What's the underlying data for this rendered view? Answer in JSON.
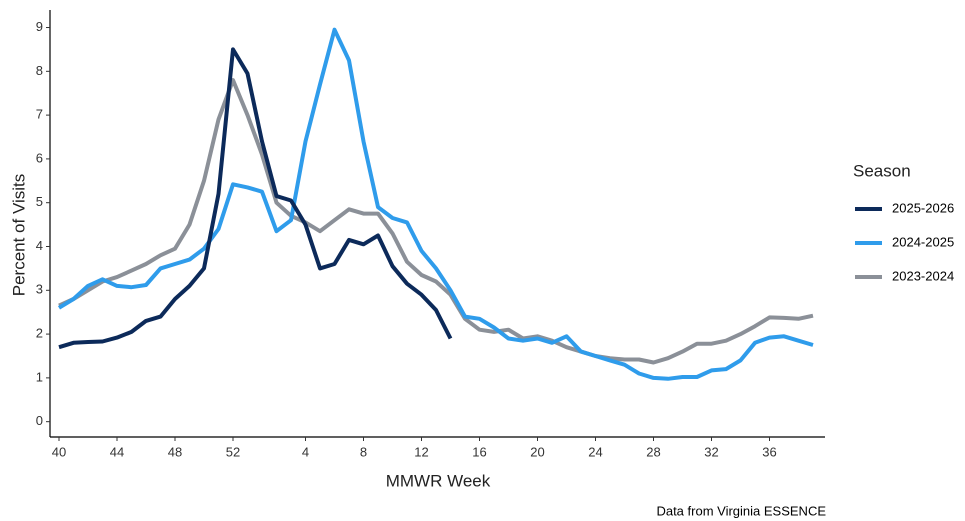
{
  "chart_data": {
    "type": "line",
    "x_label": "MMWR Week",
    "y_label": "Percent of Visits",
    "caption": "Data from Virginia ESSENCE",
    "legend_title": "Season",
    "legend_position": "right",
    "categories": [
      "40",
      null,
      null,
      null,
      "44",
      null,
      null,
      null,
      "48",
      null,
      null,
      null,
      "52",
      null,
      null,
      null,
      null,
      "4",
      null,
      null,
      null,
      "8",
      null,
      null,
      null,
      "12",
      null,
      null,
      null,
      "16",
      null,
      null,
      null,
      "20",
      null,
      null,
      null,
      "24",
      null,
      null,
      null,
      "28",
      null,
      null,
      null,
      "32",
      null,
      null,
      null,
      "36",
      null,
      null,
      null
    ],
    "ylim": [
      -0.35,
      9.4
    ],
    "yticks": [
      0,
      1,
      2,
      3,
      4,
      5,
      6,
      7,
      8,
      9
    ],
    "grid": false,
    "series": [
      {
        "name": "2025-2026",
        "color": "#0c2a5a",
        "values": [
          1.7,
          1.8,
          1.82,
          1.83,
          1.92,
          2.05,
          2.3,
          2.4,
          2.8,
          3.1,
          3.5,
          5.2,
          8.5,
          7.95,
          6.4,
          5.15,
          5.05,
          4.5,
          3.5,
          3.6,
          4.15,
          4.05,
          4.25,
          3.55,
          3.15,
          2.9,
          2.55,
          1.9,
          null,
          null,
          null,
          null,
          null,
          null,
          null,
          null,
          null,
          null,
          null,
          null,
          null,
          null,
          null,
          null,
          null,
          null,
          null,
          null,
          null,
          null,
          null,
          null,
          null
        ]
      },
      {
        "name": "2024-2025",
        "color": "#2f9ceb",
        "values": [
          2.6,
          2.8,
          3.1,
          3.25,
          3.1,
          3.07,
          3.12,
          3.5,
          3.6,
          3.7,
          3.95,
          4.4,
          5.42,
          5.35,
          5.25,
          4.35,
          4.6,
          6.4,
          7.7,
          8.95,
          8.25,
          6.4,
          4.9,
          4.65,
          4.55,
          3.9,
          3.5,
          3.0,
          2.4,
          2.35,
          2.15,
          1.9,
          1.85,
          1.9,
          1.8,
          1.95,
          1.6,
          1.5,
          1.4,
          1.3,
          1.1,
          1.0,
          0.98,
          1.02,
          1.02,
          1.17,
          1.2,
          1.4,
          1.8,
          1.92,
          1.95,
          1.85,
          1.75
        ]
      },
      {
        "name": "2023-2024",
        "color": "#8b9098",
        "values": [
          2.65,
          2.8,
          3.0,
          3.2,
          3.3,
          3.45,
          3.6,
          3.8,
          3.95,
          4.5,
          5.5,
          6.9,
          7.8,
          7.0,
          6.1,
          5.0,
          4.7,
          4.55,
          4.35,
          4.6,
          4.85,
          4.75,
          4.75,
          4.3,
          3.65,
          3.35,
          3.2,
          2.9,
          2.35,
          2.1,
          2.05,
          2.1,
          1.9,
          1.95,
          1.85,
          1.7,
          1.6,
          1.5,
          1.45,
          1.42,
          1.42,
          1.35,
          1.45,
          1.6,
          1.78,
          1.78,
          1.85,
          2.0,
          2.18,
          2.38,
          2.37,
          2.35,
          2.42
        ]
      }
    ]
  }
}
